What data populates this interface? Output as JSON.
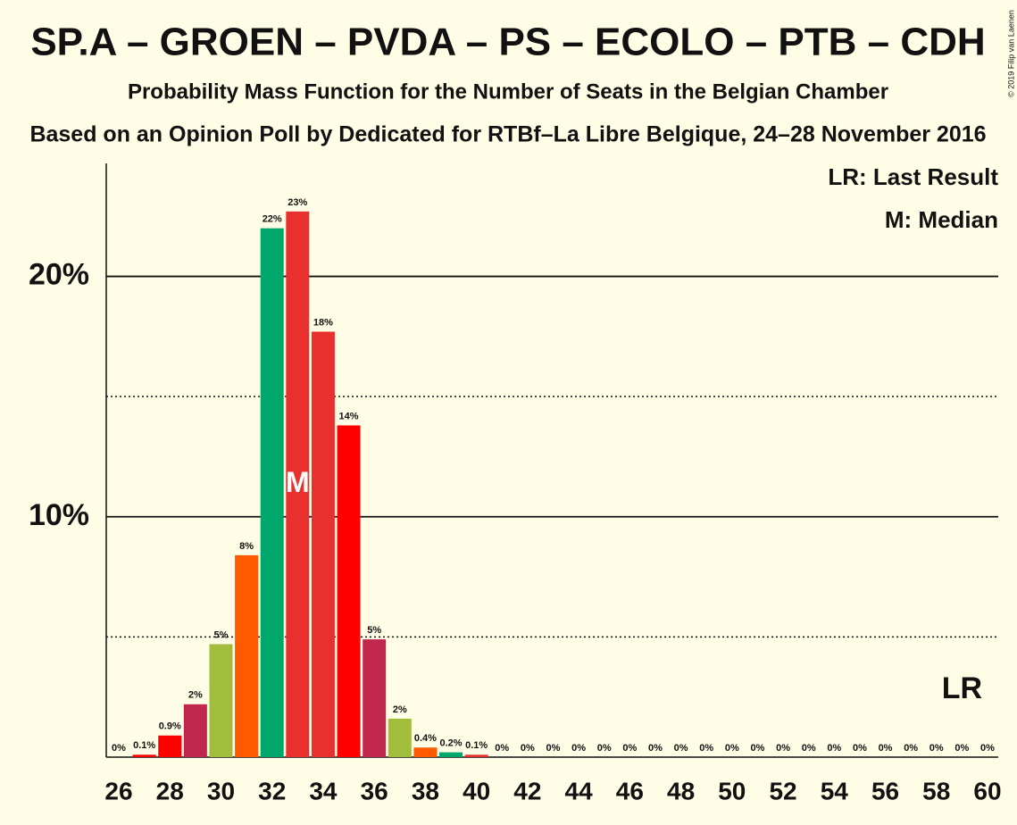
{
  "chart_data": {
    "type": "bar",
    "title": "SP.A – GROEN – PVDA – PS – ECOLO – PTB – CDH",
    "subtitle": "Probability Mass Function for the Number of Seats in the Belgian Chamber",
    "subtitle2": "Based on an Opinion Poll by Dedicated for RTBf–La Libre Belgique, 24–28 November 2016",
    "copyright": "© 2019 Filip van Laenen",
    "categories": [
      26,
      null,
      28,
      null,
      30,
      null,
      32,
      null,
      34,
      null,
      36,
      null,
      38,
      null,
      40,
      null,
      42,
      null,
      44,
      null,
      46,
      null,
      48,
      null,
      50,
      null,
      52,
      null,
      54,
      null,
      56,
      null,
      58,
      null,
      60
    ],
    "values": [
      0,
      0.1,
      0.9,
      2.2,
      4.7,
      8.4,
      22.0,
      22.7,
      17.7,
      13.8,
      4.9,
      1.6,
      0.4,
      0.2,
      0.1,
      0,
      0,
      0,
      0,
      0,
      0,
      0,
      0,
      0,
      0,
      0,
      0,
      0,
      0,
      0,
      0,
      0,
      0,
      0,
      0
    ],
    "value_labels": [
      "0%",
      "0.1%",
      "0.9%",
      "2%",
      "5%",
      "8%",
      "22%",
      "23%",
      "18%",
      "14%",
      "5%",
      "2%",
      "0.4%",
      "0.2%",
      "0.1%",
      "0%",
      "0%",
      "0%",
      "0%",
      "0%",
      "0%",
      "0%",
      "0%",
      "0%",
      "0%",
      "0%",
      "0%",
      "0%",
      "0%",
      "0%",
      "0%",
      "0%",
      "0%",
      "0%",
      "0%"
    ],
    "colors": [
      "#e8312f",
      "#ff0000",
      "#ff0000",
      "#c1264c",
      "#a0be3c",
      "#ff5a00",
      "#00a86b",
      "#e8312f",
      "#e8312f",
      "#ff0000",
      "#c1264c",
      "#a0be3c",
      "#ff5a00",
      "#00a86b",
      "#e8312f",
      "#e8312f",
      "#ff0000",
      "#c1264c",
      "#a0be3c",
      "#ff5a00",
      "#00a86b",
      "#e8312f",
      "#e8312f",
      "#ff0000",
      "#c1264c",
      "#a0be3c",
      "#ff5a00",
      "#00a86b",
      "#e8312f",
      "#e8312f",
      "#ff0000",
      "#c1264c",
      "#a0be3c",
      "#ff5a00",
      "#00a86b"
    ],
    "ylim": [
      0,
      24.7
    ],
    "yticks": [
      {
        "value": 10,
        "label": "10%"
      },
      {
        "value": 20,
        "label": "20%"
      }
    ],
    "minor_yticks": [
      5,
      15
    ],
    "grid": true,
    "legend": [
      "LR: Last Result",
      "M: Median"
    ],
    "median": {
      "x": 33,
      "label": "M"
    },
    "last_result": {
      "x": 59,
      "label": "LR"
    }
  }
}
